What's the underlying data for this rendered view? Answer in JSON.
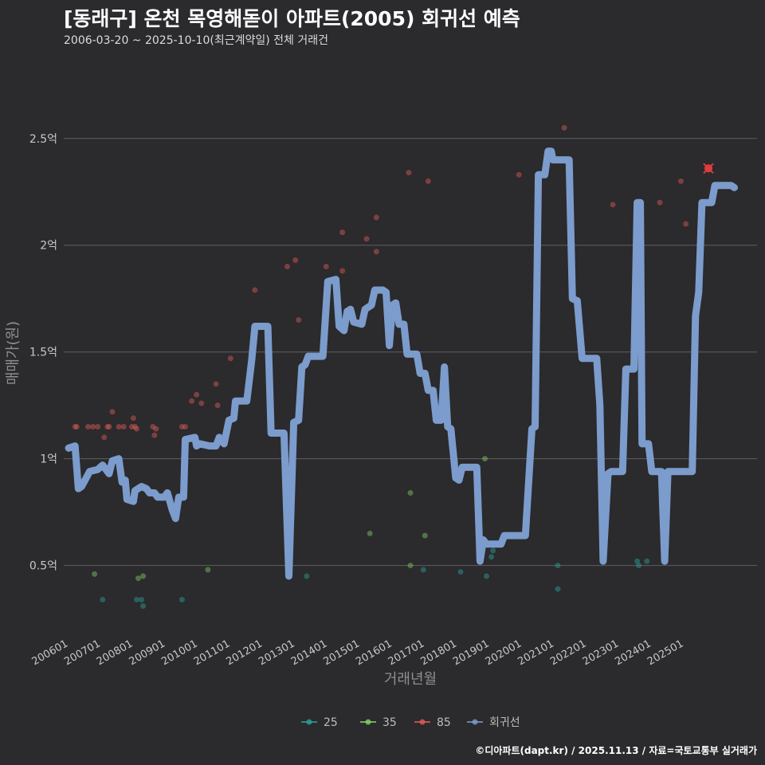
{
  "header": {
    "title": "[동래구] 온천 목영해돋이 아파트(2005) 회귀선 예측",
    "subtitle": "2006-03-20 ~ 2025-10-10(최근계약일) 전체 거래건"
  },
  "caption": "©디아파트(dapt.kr) / 2025.11.13 / 자료=국토교통부 실거래가",
  "chart_data": {
    "type": "scatter",
    "title": "[동래구] 온천 목영해돋이 아파트(2005) 회귀선 예측",
    "xlabel": "거래년월",
    "ylabel": "매매가(원)",
    "xlim": [
      2005.85,
      2027.25
    ],
    "ylim": [
      0.2,
      2.85
    ],
    "y_ticks": [
      0.5,
      1.0,
      1.5,
      2.0,
      2.5
    ],
    "y_tick_labels": [
      "0.5억",
      "1억",
      "1.5억",
      "2억",
      "2.5억"
    ],
    "x_ticks": [
      2006,
      2007,
      2008,
      2009,
      2010,
      2011,
      2012,
      2013,
      2014,
      2015,
      2016,
      2017,
      2018,
      2019,
      2020,
      2021,
      2022,
      2023,
      2024,
      2025
    ],
    "x_tick_labels": [
      "200601",
      "200701",
      "200801",
      "200901",
      "201001",
      "201101",
      "201201",
      "201301",
      "201401",
      "201501",
      "201601",
      "201701",
      "201801",
      "201901",
      "202001",
      "202101",
      "202201",
      "202301",
      "202401",
      "202501"
    ],
    "legend": [
      {
        "name": "25",
        "color": "#2aa198"
      },
      {
        "name": "35",
        "color": "#7fcf6a"
      },
      {
        "name": "85",
        "color": "#e05a5a"
      },
      {
        "name": "회귀선",
        "color": "#7b9ccc"
      }
    ],
    "series": [
      {
        "name": "25",
        "color": "#2aa198",
        "points": [
          [
            2007.05,
            0.34
          ],
          [
            2008.1,
            0.34
          ],
          [
            2008.25,
            0.34
          ],
          [
            2008.3,
            0.31
          ],
          [
            2009.5,
            0.34
          ],
          [
            2013.35,
            0.45
          ],
          [
            2016.95,
            0.48
          ],
          [
            2018.1,
            0.47
          ],
          [
            2018.9,
            0.45
          ],
          [
            2019.05,
            0.54
          ],
          [
            2019.1,
            0.57
          ],
          [
            2021.1,
            0.39
          ],
          [
            2023.55,
            0.52
          ],
          [
            2023.6,
            0.5
          ],
          [
            2023.85,
            0.52
          ],
          [
            2021.1,
            0.5
          ]
        ]
      },
      {
        "name": "35",
        "color": "#7fcf6a",
        "points": [
          [
            2006.8,
            0.46
          ],
          [
            2008.15,
            0.44
          ],
          [
            2008.3,
            0.45
          ],
          [
            2010.3,
            0.48
          ],
          [
            2015.3,
            0.65
          ],
          [
            2016.55,
            0.84
          ],
          [
            2016.55,
            0.5
          ],
          [
            2017.0,
            0.64
          ],
          [
            2018.85,
            1.0
          ]
        ]
      },
      {
        "name": "85",
        "color": "#e05a5a",
        "points": [
          [
            2006.2,
            1.15
          ],
          [
            2006.25,
            1.15
          ],
          [
            2006.6,
            1.15
          ],
          [
            2006.75,
            1.15
          ],
          [
            2006.9,
            1.15
          ],
          [
            2007.1,
            1.1
          ],
          [
            2007.2,
            1.15
          ],
          [
            2007.25,
            1.15
          ],
          [
            2007.35,
            1.22
          ],
          [
            2007.55,
            1.15
          ],
          [
            2007.7,
            1.15
          ],
          [
            2007.95,
            1.15
          ],
          [
            2008.0,
            1.19
          ],
          [
            2008.05,
            1.15
          ],
          [
            2008.1,
            1.14
          ],
          [
            2008.6,
            1.15
          ],
          [
            2008.65,
            1.11
          ],
          [
            2008.7,
            1.14
          ],
          [
            2009.5,
            1.15
          ],
          [
            2009.6,
            1.15
          ],
          [
            2009.8,
            1.27
          ],
          [
            2009.95,
            1.3
          ],
          [
            2010.1,
            1.26
          ],
          [
            2010.55,
            1.35
          ],
          [
            2010.6,
            1.25
          ],
          [
            2011.0,
            1.47
          ],
          [
            2011.75,
            1.79
          ],
          [
            2012.2,
            1.46
          ],
          [
            2012.75,
            1.9
          ],
          [
            2013.0,
            1.93
          ],
          [
            2013.1,
            1.65
          ],
          [
            2013.95,
            1.9
          ],
          [
            2014.45,
            2.06
          ],
          [
            2014.45,
            1.88
          ],
          [
            2015.2,
            2.03
          ],
          [
            2015.5,
            2.13
          ],
          [
            2015.5,
            1.97
          ],
          [
            2016.5,
            2.34
          ],
          [
            2017.1,
            2.3
          ],
          [
            2019.9,
            2.33
          ],
          [
            2021.3,
            2.55
          ],
          [
            2021.45,
            2.36
          ],
          [
            2021.45,
            2.35
          ],
          [
            2022.8,
            2.19
          ],
          [
            2024.25,
            2.2
          ],
          [
            2024.9,
            2.3
          ],
          [
            2025.05,
            2.1
          ],
          [
            2025.75,
            2.36
          ]
        ]
      },
      {
        "name": "회귀선",
        "color": "#7b9ccc",
        "points": [
          [
            2006.0,
            1.05
          ],
          [
            2006.2,
            1.06
          ],
          [
            2006.3,
            0.86
          ],
          [
            2006.4,
            0.87
          ],
          [
            2006.65,
            0.94
          ],
          [
            2006.9,
            0.95
          ],
          [
            2007.05,
            0.97
          ],
          [
            2007.25,
            0.93
          ],
          [
            2007.35,
            0.99
          ],
          [
            2007.55,
            1.0
          ],
          [
            2007.65,
            0.89
          ],
          [
            2007.75,
            0.9
          ],
          [
            2007.8,
            0.81
          ],
          [
            2008.0,
            0.8
          ],
          [
            2008.05,
            0.85
          ],
          [
            2008.25,
            0.87
          ],
          [
            2008.4,
            0.86
          ],
          [
            2008.5,
            0.84
          ],
          [
            2008.65,
            0.84
          ],
          [
            2008.75,
            0.82
          ],
          [
            2008.95,
            0.82
          ],
          [
            2009.05,
            0.84
          ],
          [
            2009.2,
            0.76
          ],
          [
            2009.3,
            0.72
          ],
          [
            2009.4,
            0.82
          ],
          [
            2009.55,
            0.82
          ],
          [
            2009.6,
            1.09
          ],
          [
            2009.9,
            1.1
          ],
          [
            2009.95,
            1.06
          ],
          [
            2010.05,
            1.07
          ],
          [
            2010.35,
            1.06
          ],
          [
            2010.55,
            1.06
          ],
          [
            2010.65,
            1.1
          ],
          [
            2010.8,
            1.07
          ],
          [
            2010.95,
            1.18
          ],
          [
            2011.1,
            1.19
          ],
          [
            2011.15,
            1.27
          ],
          [
            2011.5,
            1.27
          ],
          [
            2011.65,
            1.46
          ],
          [
            2011.75,
            1.62
          ],
          [
            2012.15,
            1.62
          ],
          [
            2012.25,
            1.12
          ],
          [
            2012.65,
            1.12
          ],
          [
            2012.8,
            0.45
          ],
          [
            2012.95,
            1.17
          ],
          [
            2013.1,
            1.18
          ],
          [
            2013.2,
            1.43
          ],
          [
            2013.3,
            1.44
          ],
          [
            2013.4,
            1.48
          ],
          [
            2013.85,
            1.48
          ],
          [
            2014.0,
            1.83
          ],
          [
            2014.25,
            1.84
          ],
          [
            2014.35,
            1.62
          ],
          [
            2014.5,
            1.6
          ],
          [
            2014.6,
            1.69
          ],
          [
            2014.7,
            1.7
          ],
          [
            2014.8,
            1.64
          ],
          [
            2015.05,
            1.63
          ],
          [
            2015.15,
            1.7
          ],
          [
            2015.35,
            1.72
          ],
          [
            2015.45,
            1.79
          ],
          [
            2015.7,
            1.79
          ],
          [
            2015.8,
            1.78
          ],
          [
            2015.9,
            1.53
          ],
          [
            2016.0,
            1.72
          ],
          [
            2016.1,
            1.73
          ],
          [
            2016.2,
            1.63
          ],
          [
            2016.35,
            1.63
          ],
          [
            2016.45,
            1.49
          ],
          [
            2016.75,
            1.49
          ],
          [
            2016.85,
            1.4
          ],
          [
            2017.0,
            1.4
          ],
          [
            2017.1,
            1.32
          ],
          [
            2017.25,
            1.32
          ],
          [
            2017.35,
            1.18
          ],
          [
            2017.5,
            1.18
          ],
          [
            2017.6,
            1.43
          ],
          [
            2017.7,
            1.15
          ],
          [
            2017.8,
            1.14
          ],
          [
            2017.95,
            0.91
          ],
          [
            2018.05,
            0.9
          ],
          [
            2018.15,
            0.96
          ],
          [
            2018.6,
            0.96
          ],
          [
            2018.7,
            0.52
          ],
          [
            2018.8,
            0.62
          ],
          [
            2018.9,
            0.6
          ],
          [
            2019.35,
            0.6
          ],
          [
            2019.45,
            0.64
          ],
          [
            2020.1,
            0.64
          ],
          [
            2020.3,
            1.14
          ],
          [
            2020.4,
            1.15
          ],
          [
            2020.5,
            2.33
          ],
          [
            2020.7,
            2.33
          ],
          [
            2020.8,
            2.44
          ],
          [
            2020.9,
            2.44
          ],
          [
            2020.95,
            2.4
          ],
          [
            2021.45,
            2.4
          ],
          [
            2021.55,
            1.75
          ],
          [
            2021.7,
            1.74
          ],
          [
            2021.85,
            1.47
          ],
          [
            2022.3,
            1.47
          ],
          [
            2022.4,
            1.25
          ],
          [
            2022.5,
            0.52
          ],
          [
            2022.65,
            0.93
          ],
          [
            2022.75,
            0.94
          ],
          [
            2023.1,
            0.94
          ],
          [
            2023.2,
            1.42
          ],
          [
            2023.45,
            1.42
          ],
          [
            2023.55,
            2.2
          ],
          [
            2023.65,
            2.2
          ],
          [
            2023.7,
            1.07
          ],
          [
            2023.9,
            1.07
          ],
          [
            2024.0,
            0.94
          ],
          [
            2024.3,
            0.94
          ],
          [
            2024.4,
            0.52
          ],
          [
            2024.5,
            0.94
          ],
          [
            2025.25,
            0.94
          ],
          [
            2025.35,
            1.67
          ],
          [
            2025.45,
            1.78
          ],
          [
            2025.55,
            2.2
          ],
          [
            2025.85,
            2.2
          ],
          [
            2025.95,
            2.28
          ],
          [
            2026.45,
            2.28
          ],
          [
            2026.55,
            2.27
          ]
        ]
      }
    ],
    "highlight": {
      "name": "최근 거래",
      "point": [
        2025.75,
        2.36
      ],
      "color": "#e03c3c"
    }
  }
}
